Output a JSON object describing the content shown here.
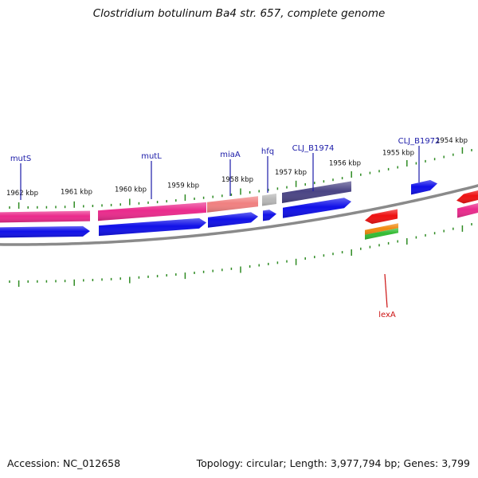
{
  "title": "Clostridium botulinum Ba4 str. 657, complete genome",
  "footer": {
    "accession": "Accession: NC_012658",
    "summary": "Topology: circular; Length: 3,977,794 bp; Genes: 3,799"
  },
  "colors": {
    "backbone": "#8a8a8a",
    "tick": "#2e8b22",
    "label_top": "#1a1aa8",
    "label_bottom": "#cc1111",
    "cds": "#1010e8",
    "pink": "#ea2a8c",
    "salmon": "#f08080",
    "gray": "#b8b8b8",
    "navy": "#4a4484",
    "red": "#ee1111",
    "orange": "#f08a10",
    "green": "#33bb33"
  },
  "scale": {
    "unit": "kbp",
    "labels": [
      "1962 kbp",
      "1961 kbp",
      "1960 kbp",
      "1959 kbp",
      "1958 kbp",
      "1957 kbp",
      "1956 kbp",
      "1955 kbp",
      "1954 kbp"
    ]
  },
  "gene_labels_top": [
    "mutS",
    "mutL",
    "miaA",
    "hfq",
    "CLJ_B1974",
    "CLJ_B1972"
  ],
  "gene_labels_bottom": [
    "lexA"
  ]
}
